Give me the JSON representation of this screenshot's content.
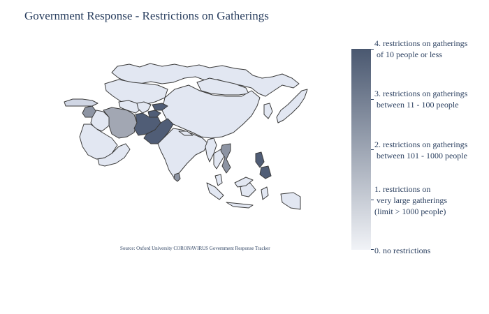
{
  "title": "Government Response - Restrictions on Gatherings",
  "source_note": "Source:  Oxford University CORONAVIRUS Government Response Tracker",
  "colorscale": {
    "low": "#f1f3f7",
    "high": "#4a5870",
    "border": "#3b3b3b",
    "levels": [
      "#e2e7f2",
      "#d0d6e4",
      "#a2a7b3",
      "#8d94a3",
      "#505d76"
    ]
  },
  "colorbar": {
    "min": 0,
    "max": 4,
    "labels": [
      {
        "value": 4,
        "text": "4. restrictions on gatherings\n of 10 people or less"
      },
      {
        "value": 3,
        "text": "3. restrictions on gatherings\n between 11 - 100 people"
      },
      {
        "value": 2,
        "text": "2. restrictions on gatherings\n between 101 - 1000 people"
      },
      {
        "value": 1,
        "text": "1. restrictions on\n very large gatherings\n(limit > 1000 people)"
      },
      {
        "value": 0,
        "text": "0. no restrictions"
      }
    ]
  },
  "regions": [
    {
      "name": "Russia (Asian part)",
      "level": 0
    },
    {
      "name": "Kazakhstan",
      "level": 0
    },
    {
      "name": "Mongolia",
      "level": 0
    },
    {
      "name": "China",
      "level": 0
    },
    {
      "name": "Turkey",
      "level": 1
    },
    {
      "name": "Syria",
      "level": 3
    },
    {
      "name": "Iraq",
      "level": 0
    },
    {
      "name": "Saudi Arabia",
      "level": 0
    },
    {
      "name": "Iran",
      "level": 2
    },
    {
      "name": "Turkmenistan",
      "level": 0
    },
    {
      "name": "Uzbekistan",
      "level": 0
    },
    {
      "name": "Kyrgyzstan",
      "level": 4
    },
    {
      "name": "Tajikistan",
      "level": 4
    },
    {
      "name": "Afghanistan",
      "level": 4
    },
    {
      "name": "Pakistan",
      "level": 4
    },
    {
      "name": "India",
      "level": 0
    },
    {
      "name": "Nepal",
      "level": 0
    },
    {
      "name": "Myanmar",
      "level": 0
    },
    {
      "name": "Thailand",
      "level": 0
    },
    {
      "name": "Vietnam",
      "level": 3
    },
    {
      "name": "Philippines",
      "level": 4
    },
    {
      "name": "Sri Lanka",
      "level": 3
    },
    {
      "name": "Japan",
      "level": 0
    },
    {
      "name": "Korea",
      "level": 0
    },
    {
      "name": "Indonesia",
      "level": 0
    },
    {
      "name": "Malaysia",
      "level": 0
    },
    {
      "name": "Oman/UAE/Yemen",
      "level": 0
    }
  ]
}
